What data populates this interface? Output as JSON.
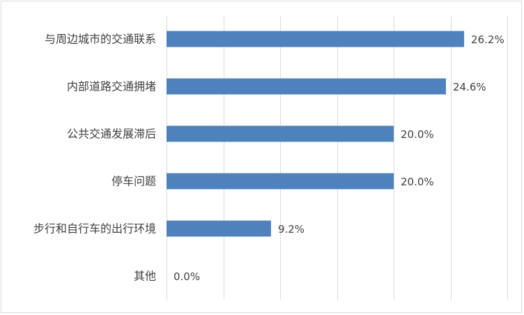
{
  "chart_data": {
    "type": "bar",
    "orientation": "horizontal",
    "categories": [
      "与周边城市的交通联系",
      "内部道路交通拥堵",
      "公共交通发展滞后",
      "停车问题",
      "步行和自行车的出行环境",
      "其他"
    ],
    "values": [
      26.2,
      24.6,
      20.0,
      20.0,
      9.2,
      0.0
    ],
    "value_labels": [
      "26.2%",
      "24.6%",
      "20.0%",
      "20.0%",
      "9.2%",
      "0.0%"
    ],
    "xlim": [
      0,
      30
    ],
    "grid": true,
    "legend": "none",
    "bar_color": "#4f81bd",
    "grid_color": "#d9d9d9"
  }
}
